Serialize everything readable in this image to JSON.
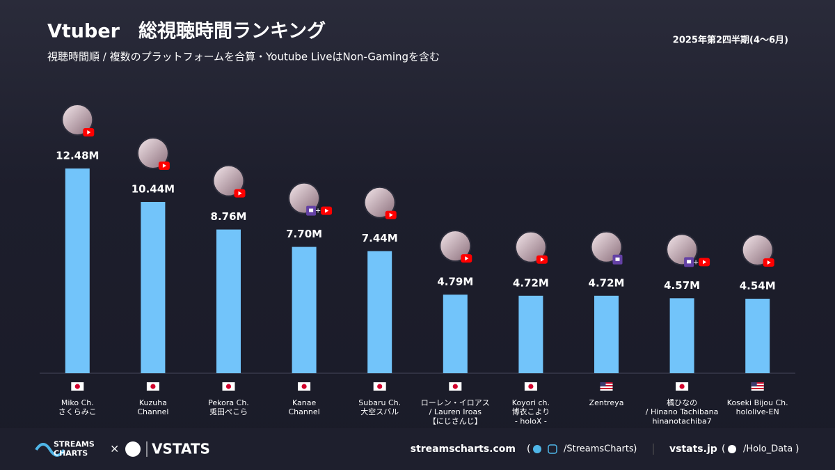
{
  "chart_data": {
    "type": "bar",
    "title": "Vtuber　総視聴時間ランキング",
    "subtitle": "視聴時間順 / 複数のプラットフォームを合算・Youtube LiveはNon-Gamingを含む",
    "period": "2025年第2四半期(4〜6月)",
    "categories": [
      "Miko Ch.\nさくらみこ",
      "Kuzuha\nChannel",
      "Pekora Ch.\n兎田ぺこら",
      "Kanae\nChannel",
      "Subaru Ch.\n大空スバル",
      "ローレン・イロアス\n/ Lauren Iroas\n【にじさんじ】",
      "Koyori ch.\n博衣こより\n- holoX -",
      "Zentreya",
      "橘ひなの\n/ Hinano Tachibana\nhinanotachiba7",
      "Koseki Bijou Ch.\nhololive-EN"
    ],
    "values": [
      12.48,
      10.44,
      8.76,
      7.7,
      7.44,
      4.79,
      4.72,
      4.72,
      4.57,
      4.54
    ],
    "value_labels": [
      "12.48M",
      "10.44M",
      "8.76M",
      "7.70M",
      "7.44M",
      "4.79M",
      "4.72M",
      "4.72M",
      "4.57M",
      "4.54M"
    ],
    "countries": [
      "jp",
      "jp",
      "jp",
      "jp",
      "jp",
      "jp",
      "jp",
      "us",
      "jp",
      "us"
    ],
    "platforms": [
      [
        "youtube"
      ],
      [
        "youtube"
      ],
      [
        "youtube"
      ],
      [
        "twitch",
        "youtube"
      ],
      [
        "youtube"
      ],
      [
        "youtube"
      ],
      [
        "youtube"
      ],
      [
        "twitch"
      ],
      [
        "twitch",
        "youtube"
      ],
      [
        "youtube"
      ]
    ],
    "color": "#72c4fa",
    "ylim": [
      0,
      14.6
    ]
  },
  "footer": {
    "brand1": "STREAMS\nCHARTS",
    "times": "×",
    "brand2": "VSTATS",
    "site1": "streamscharts.com",
    "open": "(",
    "handle1": "/StreamsCharts",
    "close": ")",
    "site2": "vstats.jp",
    "handle2": "/Holo_Data"
  }
}
